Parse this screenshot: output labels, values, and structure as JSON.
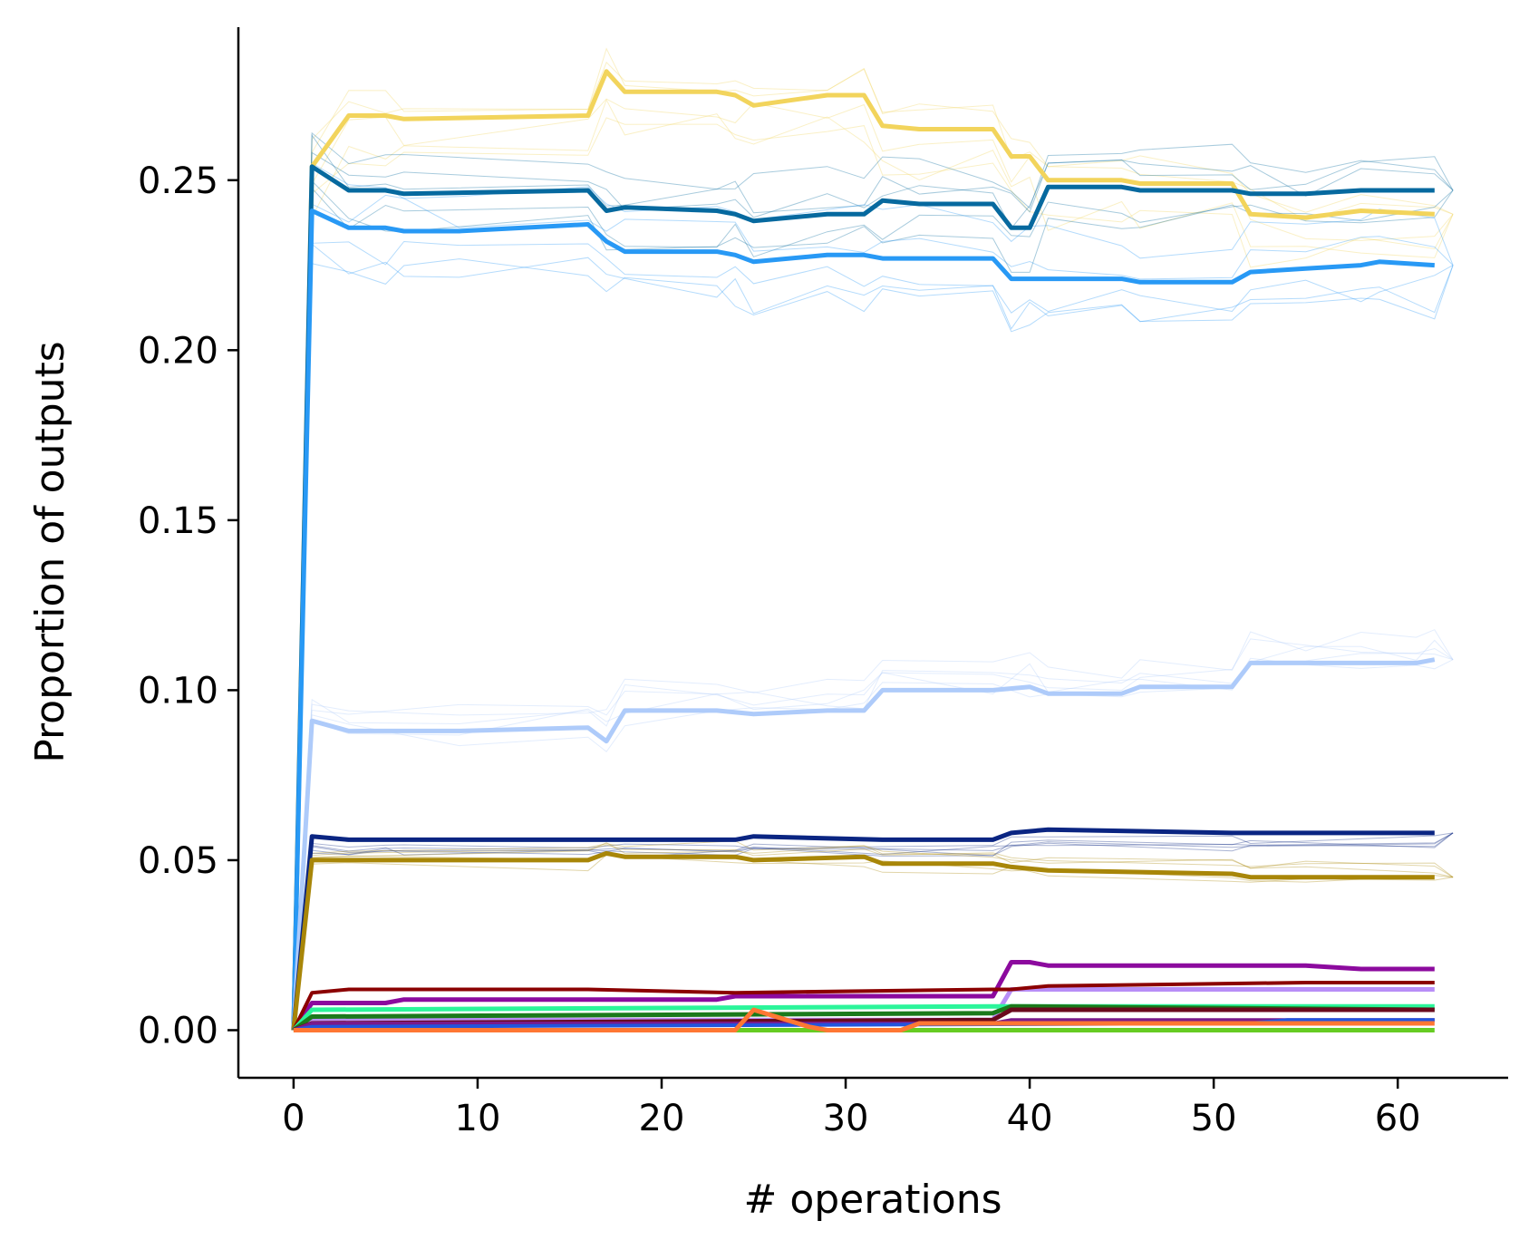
{
  "chart_data": {
    "type": "line",
    "title": "",
    "xlabel": "# operations",
    "ylabel": "Proportion of outputs",
    "xlim": [
      -3,
      66
    ],
    "ylim": [
      -0.014,
      0.295
    ],
    "xticks": [
      0,
      10,
      20,
      30,
      40,
      50,
      60
    ],
    "yticks": [
      0.0,
      0.05,
      0.1,
      0.15,
      0.2,
      0.25
    ],
    "xtick_labels": [
      "0",
      "10",
      "20",
      "30",
      "40",
      "50",
      "60"
    ],
    "ytick_labels": [
      "0.00",
      "0.05",
      "0.10",
      "0.15",
      "0.20",
      "0.25"
    ],
    "grid": false,
    "legend": "none",
    "series": [
      {
        "color": "#f2d45c",
        "width": 5,
        "points": [
          [
            0,
            0
          ],
          [
            1,
            0.254
          ],
          [
            3,
            0.269
          ],
          [
            5,
            0.269
          ],
          [
            6,
            0.268
          ],
          [
            16,
            0.269
          ],
          [
            17,
            0.282
          ],
          [
            18,
            0.276
          ],
          [
            23,
            0.276
          ],
          [
            24,
            0.275
          ],
          [
            25,
            0.272
          ],
          [
            29,
            0.275
          ],
          [
            31,
            0.275
          ],
          [
            32,
            0.266
          ],
          [
            34,
            0.265
          ],
          [
            38,
            0.265
          ],
          [
            39,
            0.257
          ],
          [
            40,
            0.257
          ],
          [
            41,
            0.25
          ],
          [
            45,
            0.25
          ],
          [
            46,
            0.249
          ],
          [
            51,
            0.249
          ],
          [
            52,
            0.24
          ],
          [
            55,
            0.239
          ],
          [
            58,
            0.241
          ],
          [
            62,
            0.24
          ]
        ]
      },
      {
        "color": "#06699f",
        "width": 5,
        "points": [
          [
            0,
            0
          ],
          [
            1,
            0.254
          ],
          [
            3,
            0.247
          ],
          [
            5,
            0.247
          ],
          [
            6,
            0.246
          ],
          [
            16,
            0.247
          ],
          [
            17,
            0.241
          ],
          [
            18,
            0.242
          ],
          [
            23,
            0.241
          ],
          [
            24,
            0.24
          ],
          [
            25,
            0.238
          ],
          [
            29,
            0.24
          ],
          [
            31,
            0.24
          ],
          [
            32,
            0.244
          ],
          [
            34,
            0.243
          ],
          [
            38,
            0.243
          ],
          [
            39,
            0.236
          ],
          [
            40,
            0.236
          ],
          [
            41,
            0.248
          ],
          [
            45,
            0.248
          ],
          [
            46,
            0.247
          ],
          [
            51,
            0.247
          ],
          [
            52,
            0.246
          ],
          [
            55,
            0.246
          ],
          [
            58,
            0.247
          ],
          [
            62,
            0.247
          ]
        ]
      },
      {
        "color": "#2899f5",
        "width": 5,
        "points": [
          [
            0,
            0
          ],
          [
            1,
            0.241
          ],
          [
            3,
            0.236
          ],
          [
            5,
            0.236
          ],
          [
            6,
            0.235
          ],
          [
            9,
            0.235
          ],
          [
            16,
            0.237
          ],
          [
            17,
            0.232
          ],
          [
            18,
            0.229
          ],
          [
            23,
            0.229
          ],
          [
            24,
            0.228
          ],
          [
            25,
            0.226
          ],
          [
            29,
            0.228
          ],
          [
            31,
            0.228
          ],
          [
            32,
            0.227
          ],
          [
            34,
            0.227
          ],
          [
            38,
            0.227
          ],
          [
            39,
            0.221
          ],
          [
            40,
            0.221
          ],
          [
            41,
            0.221
          ],
          [
            45,
            0.221
          ],
          [
            46,
            0.22
          ],
          [
            51,
            0.22
          ],
          [
            52,
            0.223
          ],
          [
            55,
            0.224
          ],
          [
            58,
            0.225
          ],
          [
            59,
            0.226
          ],
          [
            62,
            0.225
          ]
        ]
      },
      {
        "color": "#aecbfa",
        "width": 5,
        "points": [
          [
            0,
            0
          ],
          [
            1,
            0.091
          ],
          [
            3,
            0.088
          ],
          [
            9,
            0.088
          ],
          [
            16,
            0.089
          ],
          [
            17,
            0.085
          ],
          [
            18,
            0.094
          ],
          [
            23,
            0.094
          ],
          [
            25,
            0.093
          ],
          [
            29,
            0.094
          ],
          [
            31,
            0.094
          ],
          [
            32,
            0.1
          ],
          [
            38,
            0.1
          ],
          [
            40,
            0.101
          ],
          [
            41,
            0.099
          ],
          [
            45,
            0.099
          ],
          [
            46,
            0.101
          ],
          [
            51,
            0.101
          ],
          [
            52,
            0.108
          ],
          [
            55,
            0.108
          ],
          [
            58,
            0.108
          ],
          [
            61,
            0.108
          ],
          [
            62,
            0.109
          ]
        ]
      },
      {
        "color": "#0a2582",
        "width": 5,
        "points": [
          [
            0,
            0
          ],
          [
            1,
            0.057
          ],
          [
            3,
            0.056
          ],
          [
            5,
            0.056
          ],
          [
            6,
            0.056
          ],
          [
            16,
            0.056
          ],
          [
            18,
            0.056
          ],
          [
            24,
            0.056
          ],
          [
            25,
            0.057
          ],
          [
            32,
            0.056
          ],
          [
            38,
            0.056
          ],
          [
            39,
            0.058
          ],
          [
            41,
            0.059
          ],
          [
            51,
            0.058
          ],
          [
            52,
            0.058
          ],
          [
            62,
            0.058
          ]
        ]
      },
      {
        "color": "#a88608",
        "width": 5,
        "points": [
          [
            0,
            0
          ],
          [
            1,
            0.05
          ],
          [
            3,
            0.05
          ],
          [
            16,
            0.05
          ],
          [
            17,
            0.052
          ],
          [
            18,
            0.051
          ],
          [
            24,
            0.051
          ],
          [
            25,
            0.05
          ],
          [
            31,
            0.051
          ],
          [
            32,
            0.049
          ],
          [
            38,
            0.049
          ],
          [
            39,
            0.048
          ],
          [
            41,
            0.047
          ],
          [
            51,
            0.046
          ],
          [
            52,
            0.045
          ],
          [
            55,
            0.045
          ],
          [
            62,
            0.045
          ]
        ]
      },
      {
        "color": "#8c0a9e",
        "width": 5,
        "points": [
          [
            0,
            0
          ],
          [
            1,
            0.008
          ],
          [
            5,
            0.008
          ],
          [
            6,
            0.009
          ],
          [
            16,
            0.009
          ],
          [
            17,
            0.009
          ],
          [
            23,
            0.009
          ],
          [
            24,
            0.01
          ],
          [
            38,
            0.01
          ],
          [
            39,
            0.02
          ],
          [
            40,
            0.02
          ],
          [
            41,
            0.019
          ],
          [
            55,
            0.019
          ],
          [
            58,
            0.018
          ],
          [
            62,
            0.018
          ]
        ]
      },
      {
        "color": "#b88ef7",
        "width": 5,
        "points": [
          [
            0,
            0
          ],
          [
            1,
            0.003
          ],
          [
            38,
            0.003
          ],
          [
            39,
            0.012
          ],
          [
            62,
            0.012
          ]
        ]
      },
      {
        "color": "#8b0000",
        "width": 4,
        "points": [
          [
            0,
            0
          ],
          [
            1,
            0.011
          ],
          [
            3,
            0.012
          ],
          [
            16,
            0.012
          ],
          [
            24,
            0.011
          ],
          [
            38,
            0.012
          ],
          [
            39,
            0.012
          ],
          [
            41,
            0.013
          ],
          [
            55,
            0.014
          ],
          [
            62,
            0.014
          ]
        ]
      },
      {
        "color": "#2bf59a",
        "width": 5,
        "points": [
          [
            0,
            0
          ],
          [
            1,
            0.006
          ],
          [
            38,
            0.007
          ],
          [
            62,
            0.007
          ]
        ]
      },
      {
        "color": "#1b7a1b",
        "width": 5,
        "points": [
          [
            0,
            0
          ],
          [
            1,
            0.004
          ],
          [
            38,
            0.005
          ],
          [
            39,
            0.007
          ],
          [
            62,
            0.006
          ]
        ]
      },
      {
        "color": "#6a0a1e",
        "width": 5,
        "points": [
          [
            0,
            0
          ],
          [
            1,
            0.002
          ],
          [
            38,
            0.003
          ],
          [
            39,
            0.006
          ],
          [
            62,
            0.006
          ]
        ]
      },
      {
        "color": "#7a1a8a",
        "width": 4,
        "points": [
          [
            0,
            0
          ],
          [
            1,
            0.002
          ],
          [
            38,
            0.002
          ],
          [
            39,
            0.003
          ],
          [
            62,
            0.003
          ]
        ]
      },
      {
        "color": "#2255dd",
        "width": 4,
        "points": [
          [
            0,
            0
          ],
          [
            1,
            0.001
          ],
          [
            52,
            0.002
          ],
          [
            54,
            0.003
          ],
          [
            62,
            0.003
          ]
        ]
      },
      {
        "color": "#66cc22",
        "width": 5,
        "points": [
          [
            0,
            0
          ],
          [
            62,
            0
          ]
        ]
      },
      {
        "color": "#ff7733",
        "width": 5,
        "points": [
          [
            0,
            0
          ],
          [
            24,
            0
          ],
          [
            25,
            0.006
          ],
          [
            28,
            0.001
          ],
          [
            29,
            0
          ],
          [
            33,
            0
          ],
          [
            34,
            0.002
          ],
          [
            62,
            0.002
          ]
        ]
      }
    ]
  }
}
